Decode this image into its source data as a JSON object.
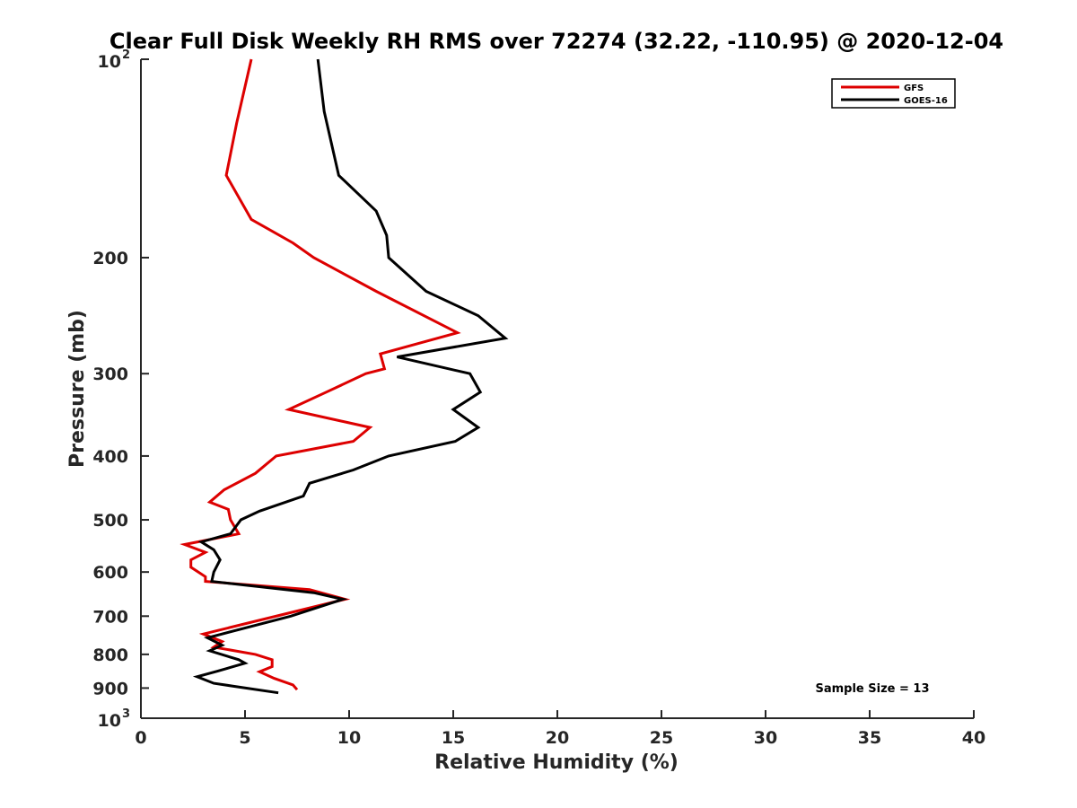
{
  "chart_data": {
    "type": "line",
    "title": "Clear Full Disk Weekly RH RMS over 72274 (32.22, -110.95) @ 2020-12-04",
    "xlabel": "Relative Humidity (%)",
    "ylabel": "Pressure (mb)",
    "xlim": [
      0,
      40
    ],
    "ylim": [
      100,
      1000
    ],
    "y_scale": "log",
    "y_reversed": true,
    "x_ticks": [
      0,
      5,
      10,
      15,
      20,
      25,
      30,
      35,
      40
    ],
    "y_ticks": [
      {
        "value": 100,
        "label": "10",
        "exp": "2"
      },
      {
        "value": 200,
        "label": "200"
      },
      {
        "value": 300,
        "label": "300"
      },
      {
        "value": 400,
        "label": "400"
      },
      {
        "value": 500,
        "label": "500"
      },
      {
        "value": 600,
        "label": "600"
      },
      {
        "value": 700,
        "label": "700"
      },
      {
        "value": 800,
        "label": "800"
      },
      {
        "value": 900,
        "label": "900"
      },
      {
        "value": 1000,
        "label": "10",
        "exp": "3"
      }
    ],
    "grid": false,
    "legend_position": "top-right",
    "annotation": "Sample Size = 13",
    "series": [
      {
        "name": "GFS",
        "color": "#dd0000",
        "points": [
          [
            5.3,
            100
          ],
          [
            4.6,
            125
          ],
          [
            4.1,
            150
          ],
          [
            5.3,
            175
          ],
          [
            7.3,
            190
          ],
          [
            8.3,
            200
          ],
          [
            11.3,
            225
          ],
          [
            15.2,
            260
          ],
          [
            11.5,
            280
          ],
          [
            11.7,
            295
          ],
          [
            10.8,
            300
          ],
          [
            8.9,
            320
          ],
          [
            7.1,
            340
          ],
          [
            11.0,
            362
          ],
          [
            10.2,
            380
          ],
          [
            6.5,
            400
          ],
          [
            5.5,
            425
          ],
          [
            4.0,
            450
          ],
          [
            3.3,
            470
          ],
          [
            4.2,
            482
          ],
          [
            4.3,
            500
          ],
          [
            4.7,
            525
          ],
          [
            2.1,
            545
          ],
          [
            3.1,
            560
          ],
          [
            2.4,
            575
          ],
          [
            2.4,
            590
          ],
          [
            3.1,
            610
          ],
          [
            3.1,
            620
          ],
          [
            8.1,
            638
          ],
          [
            9.8,
            660
          ],
          [
            6.9,
            695
          ],
          [
            3.0,
            745
          ],
          [
            3.9,
            765
          ],
          [
            3.5,
            780
          ],
          [
            5.5,
            800
          ],
          [
            6.3,
            815
          ],
          [
            6.3,
            835
          ],
          [
            5.7,
            850
          ],
          [
            6.4,
            870
          ],
          [
            7.3,
            890
          ],
          [
            7.5,
            905
          ]
        ]
      },
      {
        "name": "GOES-16",
        "color": "#000000",
        "points": [
          [
            8.5,
            100
          ],
          [
            8.8,
            120
          ],
          [
            9.5,
            150
          ],
          [
            11.3,
            170
          ],
          [
            11.8,
            185
          ],
          [
            11.9,
            200
          ],
          [
            13.7,
            225
          ],
          [
            16.2,
            245
          ],
          [
            17.5,
            265
          ],
          [
            12.3,
            283
          ],
          [
            15.8,
            300
          ],
          [
            16.3,
            320
          ],
          [
            15.0,
            340
          ],
          [
            16.2,
            362
          ],
          [
            15.1,
            380
          ],
          [
            11.9,
            400
          ],
          [
            10.2,
            420
          ],
          [
            8.1,
            440
          ],
          [
            7.8,
            460
          ],
          [
            5.7,
            485
          ],
          [
            4.8,
            500
          ],
          [
            4.3,
            525
          ],
          [
            2.9,
            540
          ],
          [
            3.5,
            555
          ],
          [
            3.8,
            575
          ],
          [
            3.5,
            600
          ],
          [
            3.4,
            620
          ],
          [
            8.3,
            645
          ],
          [
            9.7,
            660
          ],
          [
            7.2,
            700
          ],
          [
            3.2,
            755
          ],
          [
            3.9,
            775
          ],
          [
            3.3,
            790
          ],
          [
            4.7,
            815
          ],
          [
            5.0,
            825
          ],
          [
            3.7,
            848
          ],
          [
            2.7,
            865
          ],
          [
            3.5,
            885
          ],
          [
            6.6,
            915
          ]
        ]
      }
    ]
  }
}
